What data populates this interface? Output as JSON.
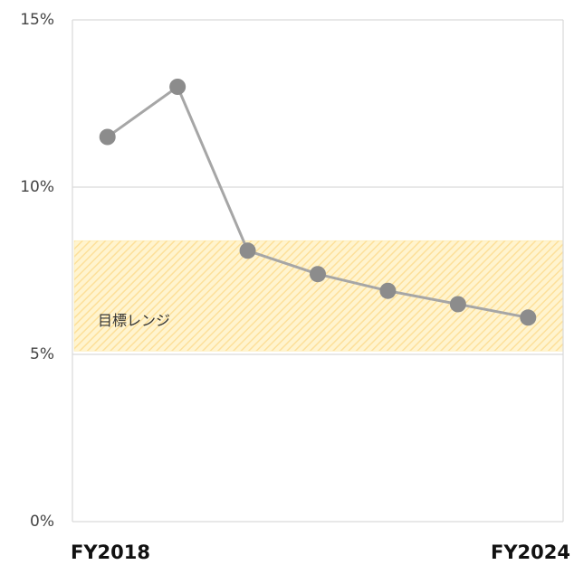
{
  "chart_data": {
    "type": "line",
    "categories": [
      "FY2018",
      null,
      null,
      null,
      null,
      null,
      "FY2024"
    ],
    "series": [
      {
        "name": null,
        "color": "#8c8c8c",
        "values": [
          11.5,
          13.0,
          8.1,
          7.4,
          6.9,
          6.5,
          6.1
        ]
      }
    ],
    "ylim": [
      0,
      15
    ],
    "yticks": [
      {
        "value": 0,
        "label": "0%"
      },
      {
        "value": 5,
        "label": "5%"
      },
      {
        "value": 10,
        "label": "10%"
      },
      {
        "value": 15,
        "label": "15%"
      }
    ],
    "grid": true,
    "target_band": {
      "label": "目標レンジ",
      "range": [
        5.1,
        8.4
      ],
      "color": "#fde7a4"
    }
  }
}
